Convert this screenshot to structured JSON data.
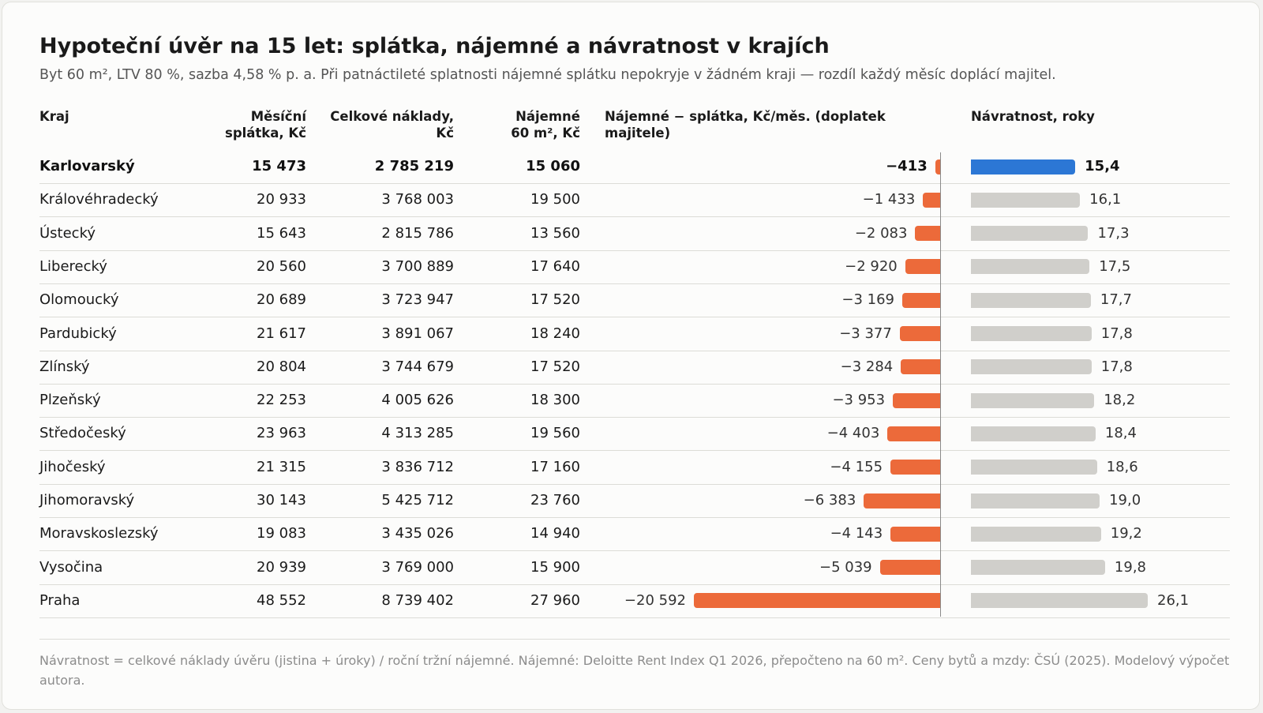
{
  "title": "Hypoteční úvěr na 15 let: splátka, nájemné a návratnost v krajích",
  "subtitle": "Byt 60 m², LTV 80 %, sazba 4,58 % p. a. Při patnáctileté splatnosti nájemné splátku nepokryje v žádném kraji — rozdíl každý měsíc doplácí majitel.",
  "headers": {
    "region": "Kraj",
    "payment": [
      "Měsíční",
      "splátka, Kč"
    ],
    "total": [
      "Celkové náklady,",
      "Kč"
    ],
    "rent": [
      "Nájemné",
      "60 m², Kč"
    ],
    "diff": [
      "Nájemné − splátka, Kč/měs. (doplatek",
      "majitele)"
    ],
    "payback": "Návratnost, roky"
  },
  "note": "Návratnost = celkové náklady úvěru (jistina + úroky) / roční tržní nájemné. Nájemné: Deloitte Rent Index Q1 2026, přepočteno na 60 m². Ceny bytů a mzdy: ČSÚ (2025). Modelový výpočet autora.",
  "colors": {
    "deficit": "#ec6a3a",
    "payback": "#d0cfcb",
    "highlight": "#2c77d5"
  },
  "chart_data": {
    "type": "table",
    "columns": [
      "Kraj",
      "Měsíční splátka, Kč",
      "Celkové náklady, Kč",
      "Nájemné 60 m², Kč",
      "Nájemné − splátka, Kč/měs. (doplatek majitele)",
      "Návratnost, roky"
    ],
    "diff_scale_max": 20592,
    "payback_scale_max": 26.1,
    "highlight_region": "Karlovarský",
    "rows": [
      {
        "region": "Karlovarský",
        "payment": "15 473",
        "total": "2 785 219",
        "rent": "15 060",
        "diff": -413,
        "diff_label": "−413",
        "payback": 15.4,
        "payback_label": "15,4"
      },
      {
        "region": "Královéhradecký",
        "payment": "20 933",
        "total": "3 768 003",
        "rent": "19 500",
        "diff": -1433,
        "diff_label": "−1 433",
        "payback": 16.1,
        "payback_label": "16,1"
      },
      {
        "region": "Ústecký",
        "payment": "15 643",
        "total": "2 815 786",
        "rent": "13 560",
        "diff": -2083,
        "diff_label": "−2 083",
        "payback": 17.3,
        "payback_label": "17,3"
      },
      {
        "region": "Liberecký",
        "payment": "20 560",
        "total": "3 700 889",
        "rent": "17 640",
        "diff": -2920,
        "diff_label": "−2 920",
        "payback": 17.5,
        "payback_label": "17,5"
      },
      {
        "region": "Olomoucký",
        "payment": "20 689",
        "total": "3 723 947",
        "rent": "17 520",
        "diff": -3169,
        "diff_label": "−3 169",
        "payback": 17.7,
        "payback_label": "17,7"
      },
      {
        "region": "Pardubický",
        "payment": "21 617",
        "total": "3 891 067",
        "rent": "18 240",
        "diff": -3377,
        "diff_label": "−3 377",
        "payback": 17.8,
        "payback_label": "17,8"
      },
      {
        "region": "Zlínský",
        "payment": "20 804",
        "total": "3 744 679",
        "rent": "17 520",
        "diff": -3284,
        "diff_label": "−3 284",
        "payback": 17.8,
        "payback_label": "17,8"
      },
      {
        "region": "Plzeňský",
        "payment": "22 253",
        "total": "4 005 626",
        "rent": "18 300",
        "diff": -3953,
        "diff_label": "−3 953",
        "payback": 18.2,
        "payback_label": "18,2"
      },
      {
        "region": "Středočeský",
        "payment": "23 963",
        "total": "4 313 285",
        "rent": "19 560",
        "diff": -4403,
        "diff_label": "−4 403",
        "payback": 18.4,
        "payback_label": "18,4"
      },
      {
        "region": "Jihočeský",
        "payment": "21 315",
        "total": "3 836 712",
        "rent": "17 160",
        "diff": -4155,
        "diff_label": "−4 155",
        "payback": 18.6,
        "payback_label": "18,6"
      },
      {
        "region": "Jihomoravský",
        "payment": "30 143",
        "total": "5 425 712",
        "rent": "23 760",
        "diff": -6383,
        "diff_label": "−6 383",
        "payback": 19.0,
        "payback_label": "19,0"
      },
      {
        "region": "Moravskoslezský",
        "payment": "19 083",
        "total": "3 435 026",
        "rent": "14 940",
        "diff": -4143,
        "diff_label": "−4 143",
        "payback": 19.2,
        "payback_label": "19,2"
      },
      {
        "region": "Vysočina",
        "payment": "20 939",
        "total": "3 769 000",
        "rent": "15 900",
        "diff": -5039,
        "diff_label": "−5 039",
        "payback": 19.8,
        "payback_label": "19,8"
      },
      {
        "region": "Praha",
        "payment": "48 552",
        "total": "8 739 402",
        "rent": "27 960",
        "diff": -20592,
        "diff_label": "−20 592",
        "payback": 26.1,
        "payback_label": "26,1"
      }
    ]
  }
}
